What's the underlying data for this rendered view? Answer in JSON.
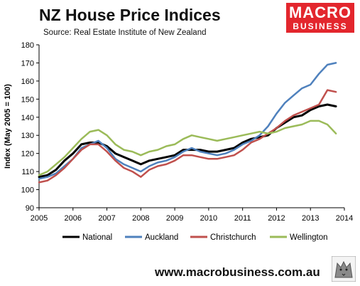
{
  "header": {
    "title": "NZ House Price Indices",
    "subtitle": "Source: Real  Estate Institute of New Zealand"
  },
  "logo": {
    "line1": "MACRO",
    "line2": "BUSINESS",
    "color": "#e3262d"
  },
  "footer": {
    "url": "www.macrobusiness.com.au"
  },
  "chart_data": {
    "type": "line",
    "title": "NZ House Price Indices",
    "xlabel": "",
    "ylabel": "Index (May 2005 = 100)",
    "xlim": [
      2005,
      2014
    ],
    "ylim": [
      90,
      180
    ],
    "x_ticks": [
      2005,
      2006,
      2007,
      2008,
      2009,
      2010,
      2011,
      2012,
      2013,
      2014
    ],
    "y_ticks": [
      90,
      100,
      110,
      120,
      130,
      140,
      150,
      160,
      170,
      180
    ],
    "grid": false,
    "legend_position": "bottom",
    "x": [
      2005.0,
      2005.25,
      2005.5,
      2005.75,
      2006.0,
      2006.25,
      2006.5,
      2006.75,
      2007.0,
      2007.25,
      2007.5,
      2007.75,
      2008.0,
      2008.25,
      2008.5,
      2008.75,
      2009.0,
      2009.25,
      2009.5,
      2009.75,
      2010.0,
      2010.25,
      2010.5,
      2010.75,
      2011.0,
      2011.25,
      2011.5,
      2011.75,
      2012.0,
      2012.25,
      2012.5,
      2012.75,
      2013.0,
      2013.25,
      2013.5,
      2013.75
    ],
    "series": [
      {
        "name": "National",
        "color": "#000000",
        "values": [
          107,
          108,
          111,
          116,
          120,
          125,
          126,
          126,
          124,
          120,
          118,
          116,
          114,
          116,
          117,
          118,
          119,
          122,
          122,
          122,
          121,
          121,
          122,
          123,
          126,
          128,
          129,
          130,
          134,
          137,
          140,
          141,
          144,
          146,
          147,
          146
        ]
      },
      {
        "name": "Auckland",
        "color": "#4f81bd",
        "values": [
          106,
          107,
          109,
          113,
          117,
          123,
          125,
          127,
          123,
          117,
          114,
          112,
          110,
          113,
          115,
          116,
          118,
          121,
          123,
          121,
          120,
          119,
          120,
          122,
          125,
          127,
          130,
          135,
          142,
          148,
          152,
          156,
          158,
          164,
          169,
          170
        ]
      },
      {
        "name": "Christchurch",
        "color": "#c0504d",
        "values": [
          104,
          105,
          108,
          112,
          117,
          122,
          125,
          125,
          121,
          116,
          112,
          110,
          107,
          111,
          113,
          114,
          116,
          119,
          119,
          118,
          117,
          117,
          118,
          119,
          122,
          126,
          128,
          131,
          134,
          138,
          141,
          143,
          145,
          147,
          155,
          154
        ]
      },
      {
        "name": "Wellington",
        "color": "#9bbb59",
        "values": [
          108,
          110,
          114,
          118,
          123,
          128,
          132,
          133,
          130,
          125,
          122,
          121,
          119,
          121,
          122,
          124,
          125,
          128,
          130,
          129,
          128,
          127,
          128,
          129,
          130,
          131,
          132,
          131,
          132,
          134,
          135,
          136,
          138,
          138,
          136,
          131
        ]
      }
    ]
  }
}
